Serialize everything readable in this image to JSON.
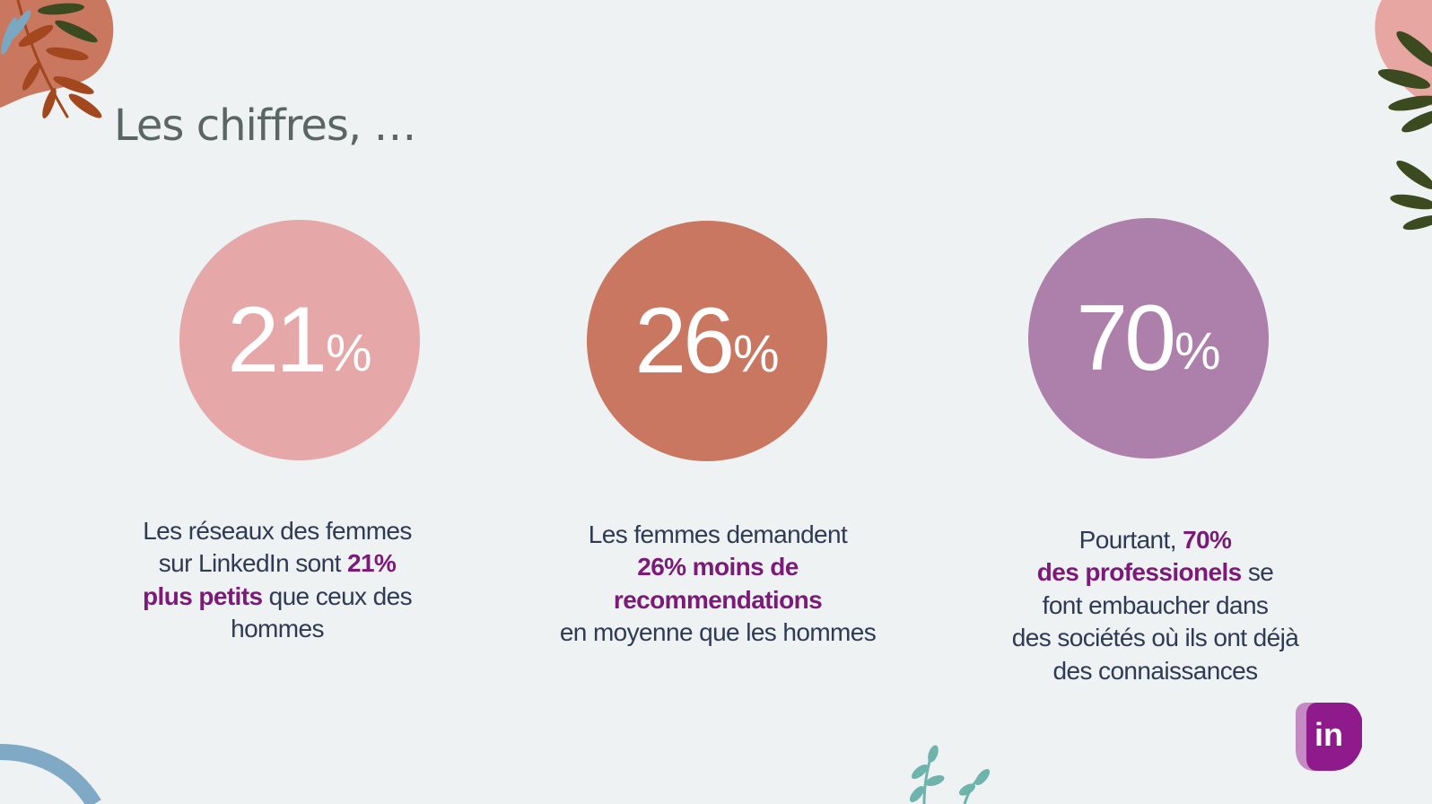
{
  "page": {
    "title": "Les chiffres, …"
  },
  "stats": [
    {
      "number": "21",
      "percent": "%",
      "color": "#e5a7a7",
      "lines": [
        {
          "parts": [
            {
              "text": "Les réseaux des femmes"
            }
          ]
        },
        {
          "parts": [
            {
              "text": "sur LinkedIn sont "
            },
            {
              "text": "21%",
              "highlight": true
            }
          ]
        },
        {
          "parts": [
            {
              "text": "plus petits",
              "highlight": true
            },
            {
              "text": " que ceux des"
            }
          ]
        },
        {
          "parts": [
            {
              "text": "hommes"
            }
          ]
        }
      ]
    },
    {
      "number": "26",
      "percent": "%",
      "color": "#c97760",
      "lines": [
        {
          "parts": [
            {
              "text": "Les femmes demandent"
            }
          ]
        },
        {
          "parts": [
            {
              "text": "26% moins de",
              "highlight": true
            }
          ]
        },
        {
          "parts": [
            {
              "text": "recommendations",
              "highlight": true
            }
          ]
        },
        {
          "parts": [
            {
              "text": "en moyenne que les hommes"
            }
          ]
        }
      ]
    },
    {
      "number": "70",
      "percent": "%",
      "color": "#ad7fab",
      "lines": [
        {
          "parts": [
            {
              "text": "Pourtant, "
            },
            {
              "text": "70%",
              "highlight": true
            }
          ]
        },
        {
          "parts": [
            {
              "text": "des professionels",
              "highlight": true
            },
            {
              "text": " se"
            }
          ]
        },
        {
          "parts": [
            {
              "text": "font embaucher dans"
            }
          ]
        },
        {
          "parts": [
            {
              "text": "des sociétés où ils ont déjà"
            }
          ]
        },
        {
          "parts": [
            {
              "text": "des connaissances"
            }
          ]
        }
      ]
    }
  ],
  "logo": {
    "text": "in",
    "icon": "linkedin-logo-icon",
    "colors": {
      "front": "#8e1a8c",
      "back": "#c58ac4"
    }
  },
  "decorations": {
    "icons": [
      "leaf-branch-icon",
      "blob-shape-icon",
      "plant-sprig-icon"
    ],
    "colors": {
      "terracotta": "#c9785f",
      "pink": "#e7a6a2",
      "leaf_dark": "#3c4a20",
      "leaf_rust": "#a2471e",
      "leaf_blue": "#7aa8c2",
      "teal": "#6fb3ad",
      "blue_line": "#7fa9c4"
    }
  }
}
